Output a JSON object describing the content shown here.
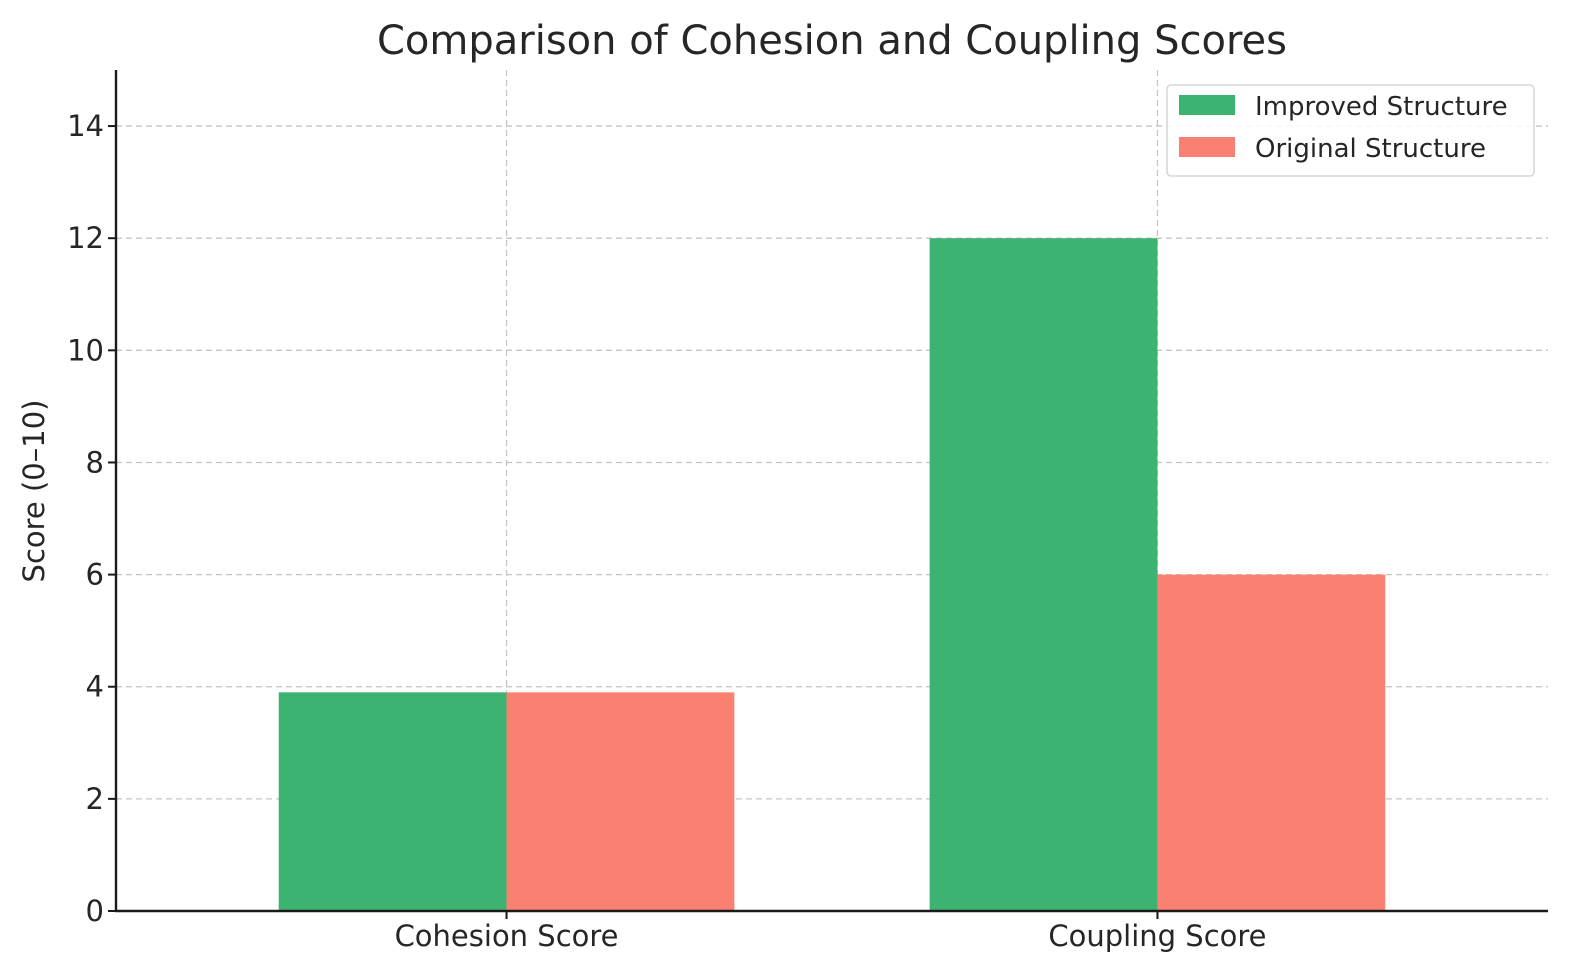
{
  "chart_data": {
    "type": "bar",
    "title": "Comparison of Cohesion and Coupling Scores",
    "xlabel": "",
    "ylabel": "Score (0–10)",
    "categories": [
      "Cohesion Score",
      "Coupling Score"
    ],
    "series": [
      {
        "name": "Improved Structure",
        "color": "#3cb371",
        "values": [
          3.9,
          12
        ]
      },
      {
        "name": "Original Structure",
        "color": "#fa8072",
        "values": [
          3.9,
          6
        ]
      }
    ],
    "ylim": [
      0,
      15
    ],
    "yticks": [
      "0",
      "2",
      "4",
      "6",
      "8",
      "10",
      "12",
      "14"
    ],
    "grid": true,
    "legend_position": "top-right"
  }
}
